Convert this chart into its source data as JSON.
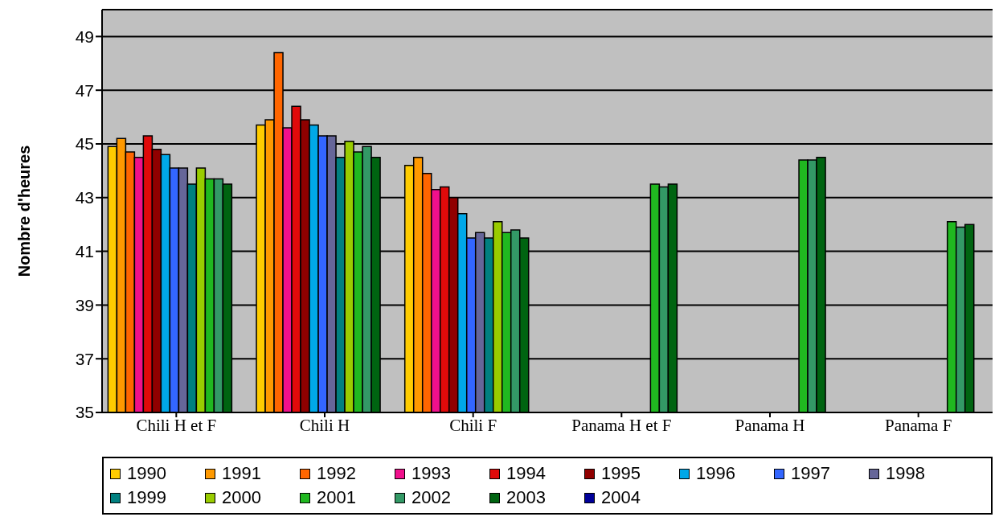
{
  "chart_data": {
    "type": "bar",
    "ylabel": "Nombre d'heures",
    "categories": [
      "Chili H et F",
      "Chili H",
      "Chili F",
      "Panama H et F",
      "Panama H",
      "Panama F"
    ],
    "series": [
      {
        "name": "1990",
        "color": "#ffcc00",
        "values": [
          44.9,
          45.7,
          44.2,
          null,
          null,
          null
        ]
      },
      {
        "name": "1991",
        "color": "#ff9900",
        "values": [
          45.2,
          45.9,
          44.5,
          null,
          null,
          null
        ]
      },
      {
        "name": "1992",
        "color": "#ff6600",
        "values": [
          44.7,
          48.4,
          43.9,
          null,
          null,
          null
        ]
      },
      {
        "name": "1993",
        "color": "#f0108c",
        "values": [
          44.5,
          45.6,
          43.3,
          null,
          null,
          null
        ]
      },
      {
        "name": "1994",
        "color": "#e00a0a",
        "values": [
          45.3,
          46.4,
          43.4,
          null,
          null,
          null
        ]
      },
      {
        "name": "1995",
        "color": "#900000",
        "values": [
          44.8,
          45.9,
          43.0,
          null,
          null,
          null
        ]
      },
      {
        "name": "1996",
        "color": "#00a8e8",
        "values": [
          44.6,
          45.7,
          42.4,
          null,
          null,
          null
        ]
      },
      {
        "name": "1997",
        "color": "#3366ff",
        "values": [
          44.1,
          45.3,
          41.5,
          null,
          null,
          null
        ]
      },
      {
        "name": "1998",
        "color": "#666699",
        "values": [
          44.1,
          45.3,
          41.7,
          null,
          null,
          null
        ]
      },
      {
        "name": "1999",
        "color": "#008080",
        "values": [
          43.5,
          44.5,
          41.5,
          null,
          null,
          null
        ]
      },
      {
        "name": "2000",
        "color": "#99cc00",
        "values": [
          44.1,
          45.1,
          42.1,
          null,
          null,
          null
        ]
      },
      {
        "name": "2001",
        "color": "#20b820",
        "values": [
          43.7,
          44.7,
          41.7,
          43.5,
          44.4,
          42.1
        ]
      },
      {
        "name": "2002",
        "color": "#339966",
        "values": [
          43.7,
          44.9,
          41.8,
          43.4,
          44.4,
          41.9
        ]
      },
      {
        "name": "2003",
        "color": "#006411",
        "values": [
          43.5,
          44.5,
          41.5,
          43.5,
          44.5,
          42.0
        ]
      },
      {
        "name": "2004",
        "color": "#000099",
        "values": [
          null,
          null,
          null,
          null,
          null,
          null
        ]
      }
    ],
    "ylim": [
      35,
      50
    ],
    "yticks": [
      35,
      37,
      39,
      41,
      43,
      45,
      47,
      49
    ],
    "grid": "y",
    "legend": "bottom"
  }
}
